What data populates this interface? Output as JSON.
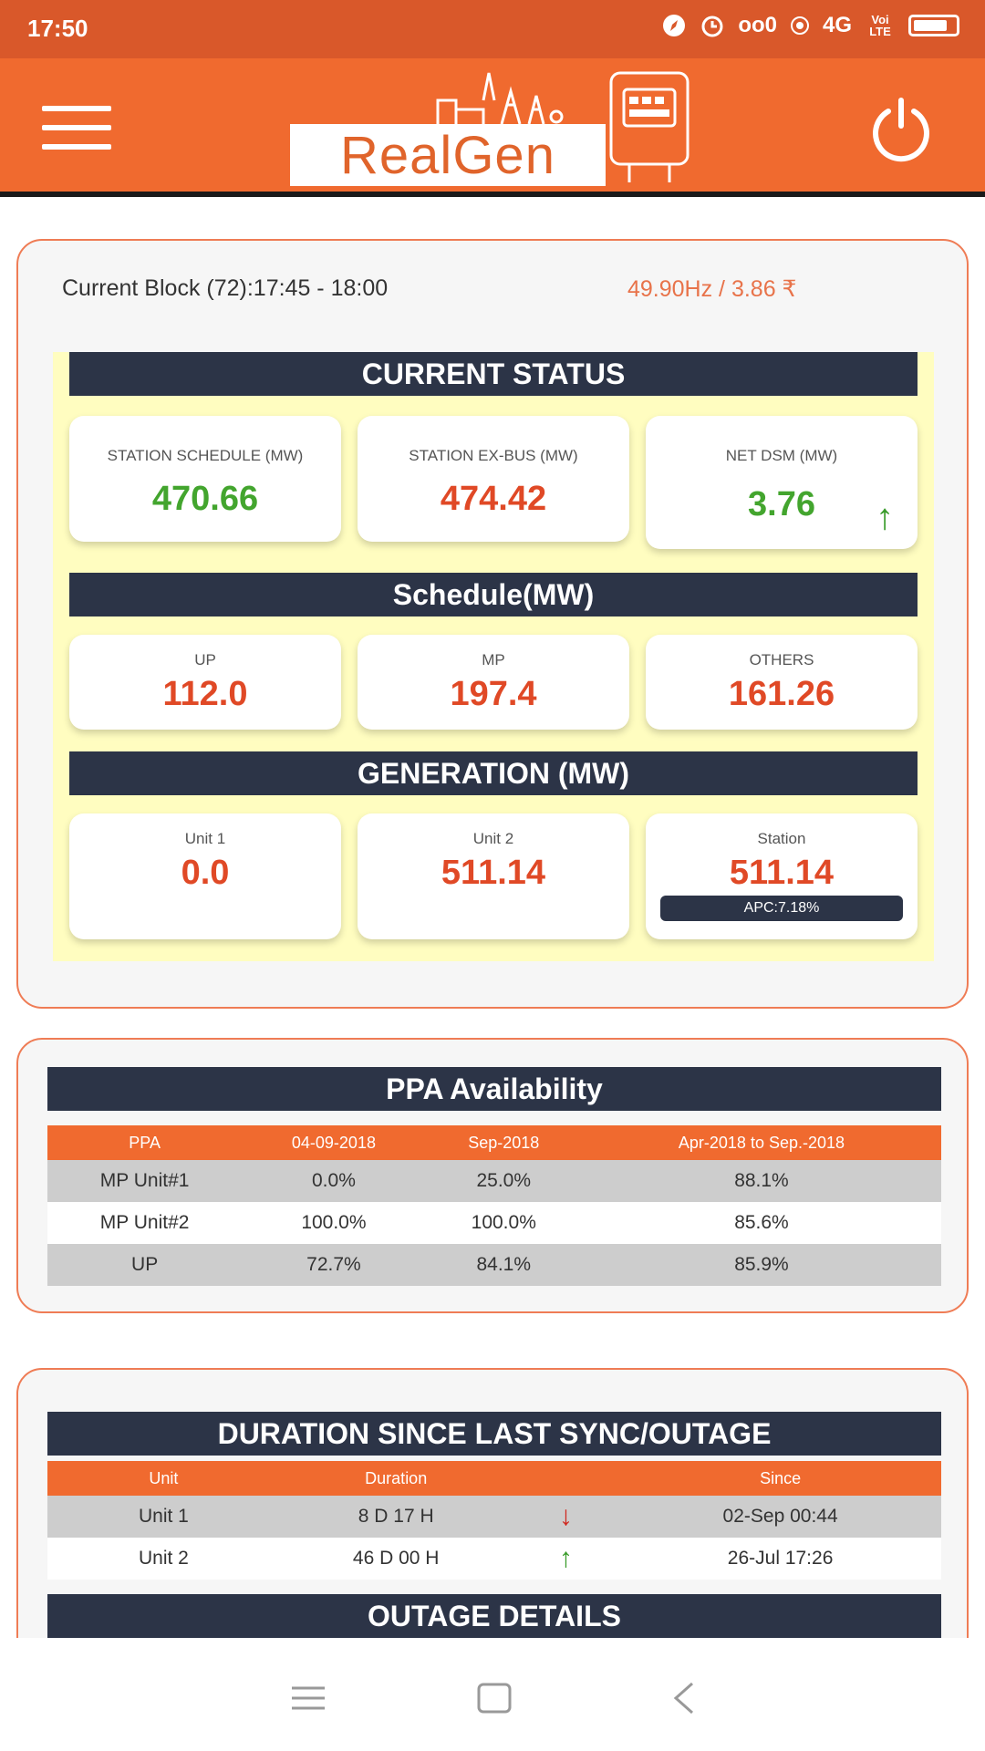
{
  "status_bar": {
    "time": "17:50",
    "signal_text": "oo0",
    "network": "4G",
    "carrier": "Voi LTE"
  },
  "app": {
    "logo_text": "RealGen"
  },
  "block": {
    "label": "Current Block (72):17:45 - 18:00",
    "freq_price": "49.90Hz /  3.86 ₹"
  },
  "current_status": {
    "title": "CURRENT STATUS",
    "tiles": [
      {
        "label": "STATION SCHEDULE (MW)",
        "value": "470.66",
        "color": "#43a52e"
      },
      {
        "label": "STATION EX-BUS (MW)",
        "value": "474.42",
        "color": "#e04926"
      },
      {
        "label": "NET DSM (MW)",
        "value": "3.76",
        "color": "#43a52e",
        "icon": "arrow-up-icon"
      }
    ]
  },
  "schedule": {
    "title": "Schedule(MW)",
    "tiles": [
      {
        "label": "UP",
        "value": "112.0"
      },
      {
        "label": "MP",
        "value": "197.4"
      },
      {
        "label": "OTHERS",
        "value": "161.26"
      }
    ]
  },
  "generation": {
    "title": "GENERATION (MW)",
    "tiles": [
      {
        "label": "Unit 1",
        "value": "0.0"
      },
      {
        "label": "Unit 2",
        "value": "511.14"
      },
      {
        "label": "Station",
        "value": "511.14",
        "badge": "APC:7.18%"
      }
    ]
  },
  "ppa": {
    "title": "PPA Availability",
    "columns": [
      "PPA",
      "04-09-2018",
      "Sep-2018",
      "Apr-2018 to Sep.-2018"
    ],
    "rows": [
      [
        "MP Unit#1",
        "0.0%",
        "25.0%",
        "88.1%"
      ],
      [
        "MP Unit#2",
        "100.0%",
        "100.0%",
        "85.6%"
      ],
      [
        "UP",
        "72.7%",
        "84.1%",
        "85.9%"
      ]
    ]
  },
  "sync": {
    "title": "DURATION SINCE LAST SYNC/OUTAGE",
    "columns": [
      "Unit",
      "Duration",
      "",
      "Since"
    ],
    "rows": [
      {
        "unit": "Unit 1",
        "duration": "8 D 17 H",
        "trend": "down",
        "since": "02-Sep 00:44"
      },
      {
        "unit": "Unit 2",
        "duration": "46 D 00 H",
        "trend": "up",
        "since": "26-Jul 17:26"
      }
    ],
    "outage_title": "OUTAGE DETAILS"
  },
  "colors": {
    "accent": "#f06a2f",
    "dark": "#2c3447",
    "green": "#43a52e",
    "red": "#e04926",
    "panel_bg": "#fffdc0"
  }
}
